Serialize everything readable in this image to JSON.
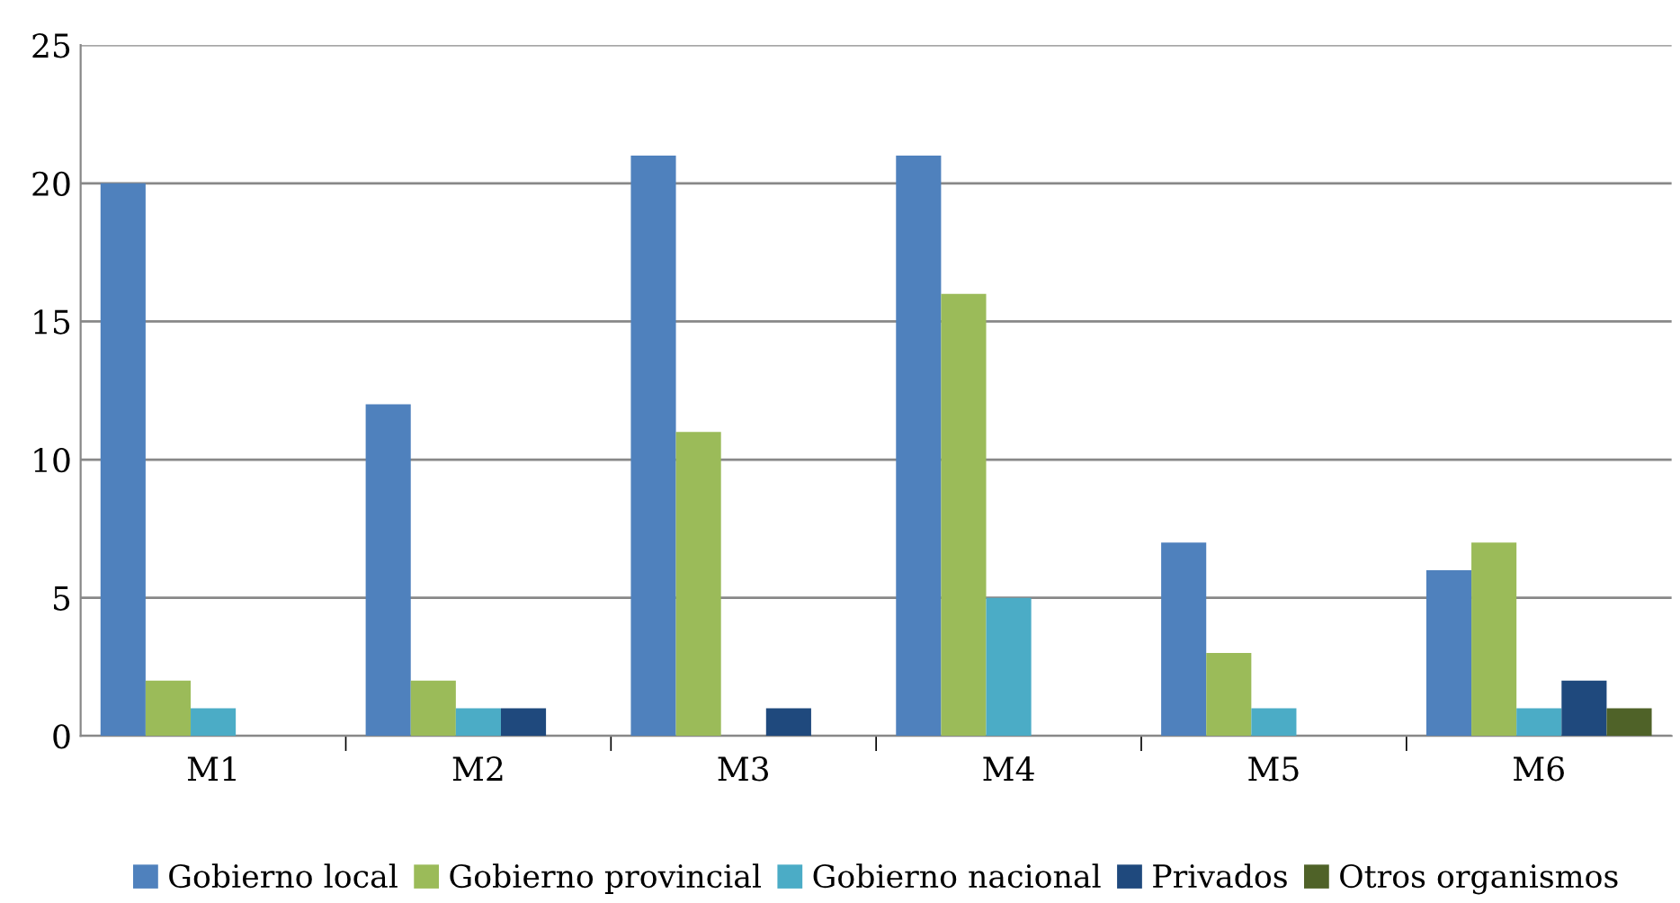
{
  "chart_data": {
    "type": "bar",
    "categories": [
      "M1",
      "M2",
      "M3",
      "M4",
      "M5",
      "M6"
    ],
    "series": [
      {
        "name": "Gobierno local",
        "color": "#4f81bd",
        "values": [
          20,
          12,
          21,
          21,
          7,
          6
        ]
      },
      {
        "name": "Gobierno provincial",
        "color": "#9bbb59",
        "values": [
          2,
          2,
          11,
          16,
          3,
          7
        ]
      },
      {
        "name": "Gobierno nacional",
        "color": "#4bacc6",
        "values": [
          1,
          1,
          0,
          5,
          1,
          1
        ]
      },
      {
        "name": "Privados",
        "color": "#1f497d",
        "values": [
          0,
          1,
          1,
          0,
          0,
          2
        ]
      },
      {
        "name": "Otros organismos",
        "color": "#4f6228",
        "values": [
          0,
          0,
          0,
          0,
          0,
          1
        ]
      }
    ],
    "ylim": [
      0,
      25
    ],
    "yticks": [
      0,
      5,
      10,
      15,
      20,
      25
    ],
    "grid": "y",
    "legend": "bottom"
  }
}
